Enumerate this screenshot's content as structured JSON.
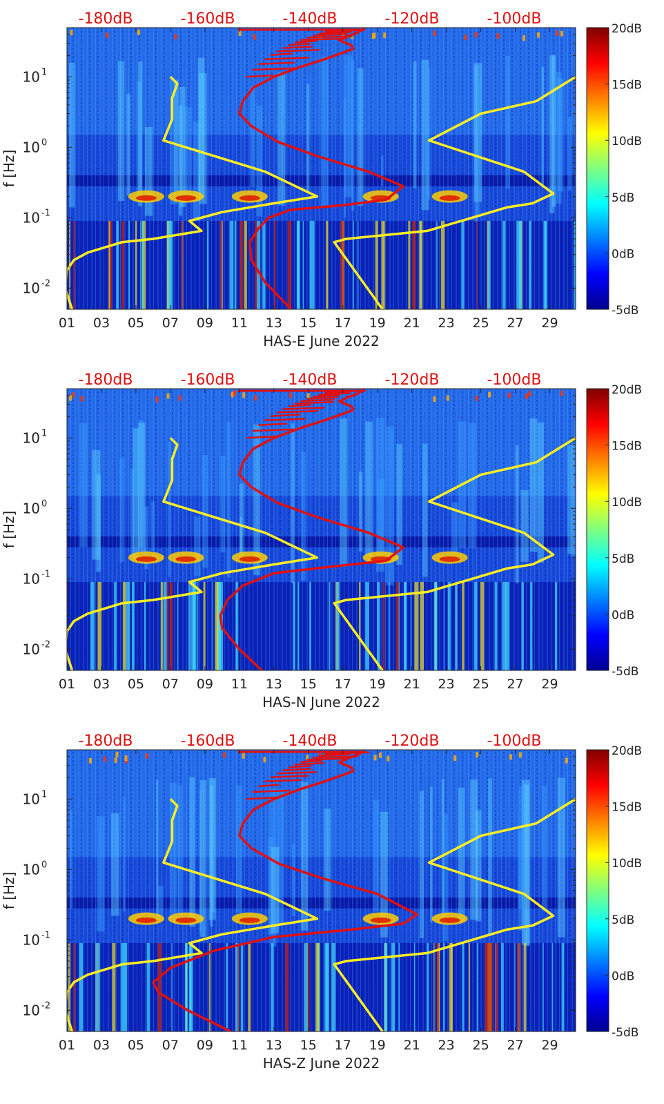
{
  "figure": {
    "colorbar": {
      "ticks": [
        "20dB",
        "15dB",
        "10dB",
        "5dB",
        "0dB",
        "-5dB"
      ],
      "values": [
        20,
        15,
        10,
        5,
        0,
        -5
      ],
      "range": [
        -5,
        20
      ],
      "colormap": "jet"
    },
    "top_axis": {
      "ticks": [
        "-180dB",
        "-160dB",
        "-140dB",
        "-120dB",
        "-100dB"
      ],
      "values": [
        -180,
        -160,
        -140,
        -120,
        -100
      ],
      "color": "#e01010"
    },
    "colors": {
      "model_curves": "#ffee22",
      "psd_curve": "#e01010",
      "label_red": "#e01010",
      "axis": "#222222"
    }
  },
  "chart_data": [
    {
      "type": "heatmap",
      "title": "HAS-E June 2022",
      "xlabel": "HAS-E June 2022",
      "ylabel": "f [Hz]",
      "xticks": [
        "01",
        "03",
        "05",
        "07",
        "09",
        "11",
        "13",
        "15",
        "17",
        "19",
        "21",
        "23",
        "25",
        "27",
        "29"
      ],
      "xlim": [
        1,
        30.5
      ],
      "ylim": [
        0.005,
        50
      ],
      "ytick_values": [
        0.01,
        0.1,
        1,
        10
      ],
      "yticks": [
        {
          "base": "10",
          "exp": "-2"
        },
        {
          "base": "10",
          "exp": "-1"
        },
        {
          "base": "10",
          "exp": "0"
        },
        {
          "base": "10",
          "exp": "1"
        }
      ],
      "clim": [
        -5,
        20
      ],
      "series": [
        {
          "name": "low-noise model (yellow)",
          "color": "yellow",
          "x": [
            1.3,
            0.9,
            1.0,
            1.4,
            2.2,
            4.2,
            6.0,
            8.8,
            8.1,
            10.0,
            13.0,
            15.5,
            12.5,
            6.6,
            7.1,
            7.1,
            7.4,
            7.0
          ],
          "y": [
            0.005,
            0.01,
            0.018,
            0.025,
            0.032,
            0.045,
            0.05,
            0.065,
            0.09,
            0.12,
            0.16,
            0.2,
            0.45,
            1.25,
            2.5,
            5,
            8,
            10
          ]
        },
        {
          "name": "high-noise model (yellow)",
          "color": "yellow",
          "x": [
            19.3,
            16.5,
            17.2,
            21.9,
            24.5,
            26.5,
            28.0,
            29.2,
            27.5,
            22.0,
            25.0,
            28.2,
            30.5
          ],
          "y": [
            0.005,
            0.045,
            0.05,
            0.065,
            0.1,
            0.14,
            0.16,
            0.22,
            0.45,
            1.25,
            3.0,
            4.5,
            10
          ]
        },
        {
          "name": "PSD (red)",
          "color": "red",
          "x": [
            14.0,
            12.5,
            11.7,
            11.6,
            12.1,
            12.7,
            14.0,
            17.0,
            19.5,
            20.5,
            18.5,
            15.5,
            13.2,
            11.7,
            11.0,
            11.2,
            11.8,
            13.0,
            14.6,
            16.0,
            17.0,
            17.6,
            17.5,
            16.8,
            17.3,
            17.8,
            18.0,
            18.3
          ],
          "y": [
            0.005,
            0.012,
            0.025,
            0.045,
            0.07,
            0.1,
            0.13,
            0.15,
            0.18,
            0.28,
            0.45,
            0.75,
            1.2,
            2.0,
            3.0,
            4.5,
            7,
            10,
            14,
            18,
            22,
            25,
            28,
            33,
            38,
            42,
            45,
            48
          ]
        }
      ]
    },
    {
      "type": "heatmap",
      "title": "HAS-N June 2022",
      "xlabel": "HAS-N June 2022",
      "ylabel": "f [Hz]",
      "xticks": [
        "01",
        "03",
        "05",
        "07",
        "09",
        "11",
        "13",
        "15",
        "17",
        "19",
        "21",
        "23",
        "25",
        "27",
        "29"
      ],
      "xlim": [
        1,
        30.5
      ],
      "ylim": [
        0.005,
        50
      ],
      "ytick_values": [
        0.01,
        0.1,
        1,
        10
      ],
      "yticks": [
        {
          "base": "10",
          "exp": "-2"
        },
        {
          "base": "10",
          "exp": "-1"
        },
        {
          "base": "10",
          "exp": "0"
        },
        {
          "base": "10",
          "exp": "1"
        }
      ],
      "clim": [
        -5,
        20
      ],
      "series": [
        {
          "name": "low-noise model (yellow)",
          "color": "yellow",
          "x": [
            1.3,
            0.9,
            1.0,
            1.4,
            2.2,
            4.2,
            6.0,
            8.8,
            8.1,
            10.0,
            13.0,
            15.5,
            12.5,
            6.6,
            7.1,
            7.1,
            7.4,
            7.0
          ],
          "y": [
            0.005,
            0.01,
            0.018,
            0.025,
            0.032,
            0.045,
            0.05,
            0.065,
            0.09,
            0.12,
            0.16,
            0.2,
            0.45,
            1.25,
            2.5,
            5,
            8,
            10
          ]
        },
        {
          "name": "high-noise model (yellow)",
          "color": "yellow",
          "x": [
            19.3,
            16.5,
            17.2,
            21.9,
            24.5,
            26.5,
            28.0,
            29.2,
            27.5,
            22.0,
            25.0,
            28.2,
            30.5
          ],
          "y": [
            0.005,
            0.045,
            0.05,
            0.065,
            0.1,
            0.14,
            0.16,
            0.22,
            0.45,
            1.25,
            3.0,
            4.5,
            10
          ]
        },
        {
          "name": "PSD (red)",
          "color": "red",
          "x": [
            12.3,
            11.0,
            10.0,
            9.9,
            10.3,
            11.2,
            13.0,
            16.5,
            19.5,
            20.5,
            18.5,
            15.5,
            13.2,
            11.7,
            11.0,
            11.2,
            11.8,
            13.0,
            14.6,
            16.0,
            17.0,
            17.6,
            17.5,
            16.8,
            17.3,
            17.8,
            18.0,
            18.3
          ],
          "y": [
            0.005,
            0.01,
            0.02,
            0.03,
            0.05,
            0.08,
            0.12,
            0.15,
            0.18,
            0.28,
            0.45,
            0.75,
            1.2,
            2.0,
            3.0,
            4.5,
            7,
            10,
            14,
            18,
            22,
            25,
            28,
            33,
            38,
            42,
            45,
            48
          ]
        }
      ]
    },
    {
      "type": "heatmap",
      "title": "HAS-Z June 2022",
      "xlabel": "HAS-Z June 2022",
      "ylabel": "f [Hz]",
      "xticks": [
        "01",
        "03",
        "05",
        "07",
        "09",
        "11",
        "13",
        "15",
        "17",
        "19",
        "21",
        "23",
        "25",
        "27",
        "29"
      ],
      "xlim": [
        1,
        30.5
      ],
      "ylim": [
        0.005,
        50
      ],
      "ytick_values": [
        0.01,
        0.1,
        1,
        10
      ],
      "yticks": [
        {
          "base": "10",
          "exp": "-2"
        },
        {
          "base": "10",
          "exp": "-1"
        },
        {
          "base": "10",
          "exp": "0"
        },
        {
          "base": "10",
          "exp": "1"
        }
      ],
      "clim": [
        -5,
        20
      ],
      "series": [
        {
          "name": "low-noise model (yellow)",
          "color": "yellow",
          "x": [
            1.3,
            0.9,
            1.0,
            1.4,
            2.2,
            4.2,
            6.0,
            8.8,
            8.1,
            10.0,
            13.0,
            15.5,
            12.5,
            6.6,
            7.1,
            7.1,
            7.4,
            7.0
          ],
          "y": [
            0.005,
            0.01,
            0.018,
            0.025,
            0.032,
            0.045,
            0.05,
            0.065,
            0.09,
            0.12,
            0.16,
            0.2,
            0.45,
            1.25,
            2.5,
            5,
            8,
            10
          ]
        },
        {
          "name": "high-noise model (yellow)",
          "color": "yellow",
          "x": [
            19.3,
            16.5,
            17.2,
            21.9,
            24.5,
            26.5,
            28.0,
            29.2,
            27.5,
            22.0,
            25.0,
            28.2,
            30.5
          ],
          "y": [
            0.005,
            0.045,
            0.05,
            0.065,
            0.1,
            0.14,
            0.16,
            0.22,
            0.45,
            1.25,
            3.0,
            4.5,
            10
          ]
        },
        {
          "name": "PSD (red)",
          "color": "red",
          "x": [
            10.5,
            8.0,
            6.3,
            6.0,
            7.0,
            9.5,
            13.0,
            17.5,
            20.5,
            21.3,
            19.0,
            15.8,
            13.3,
            11.7,
            11.0,
            11.2,
            11.8,
            13.0,
            14.6,
            16.0,
            17.0,
            17.6,
            17.5,
            16.8,
            17.3,
            17.8,
            18.0,
            18.3
          ],
          "y": [
            0.005,
            0.01,
            0.018,
            0.025,
            0.04,
            0.07,
            0.11,
            0.14,
            0.17,
            0.23,
            0.45,
            0.75,
            1.2,
            2.0,
            3.0,
            4.5,
            7,
            10,
            14,
            18,
            22,
            25,
            28,
            33,
            38,
            42,
            45,
            48
          ]
        }
      ]
    }
  ]
}
